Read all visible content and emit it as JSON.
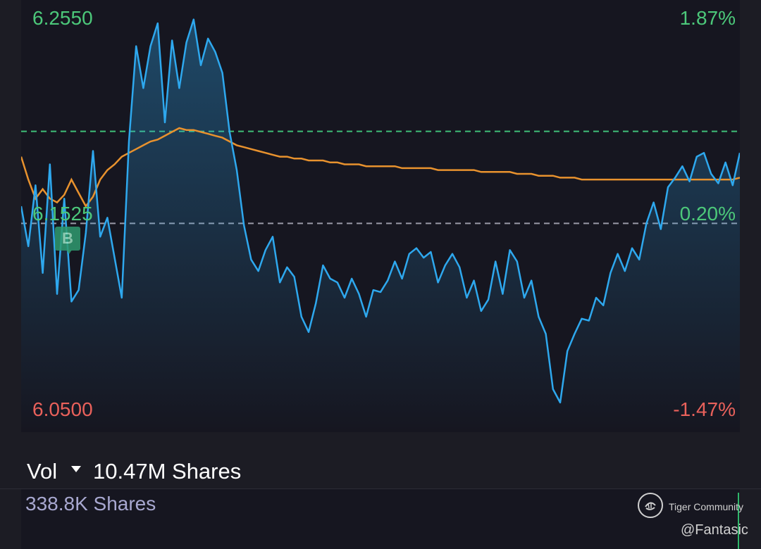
{
  "chart": {
    "price_high": "6.2550",
    "price_mid": "6.1525",
    "price_low": "6.0500",
    "pct_high": "1.87%",
    "pct_mid": "0.20%",
    "pct_low": "-1.47%",
    "buy_marker": "B"
  },
  "volume": {
    "label": "Vol",
    "value": "10.47M Shares",
    "axis_value": "338.8K Shares"
  },
  "watermark": {
    "brand": "Tiger Community",
    "handle": "@Fantasic"
  },
  "colors": {
    "price_line": "#2ea8ee",
    "avg_line": "#e8922e",
    "up": "#4cc87a",
    "down": "#e9615b"
  },
  "chart_data": {
    "type": "line",
    "x": [
      0,
      5,
      10,
      15,
      20,
      25,
      30,
      35,
      40,
      45,
      50,
      55,
      60,
      65,
      70,
      75,
      80,
      85,
      90,
      95,
      100,
      105,
      110,
      115,
      120,
      125,
      130,
      135,
      140,
      145,
      150,
      155,
      160,
      165,
      170,
      175,
      180,
      185,
      190,
      195,
      200,
      205,
      210,
      215,
      220,
      225,
      230,
      235,
      240,
      245,
      250,
      255,
      260,
      265,
      270,
      275,
      280,
      285,
      290,
      295,
      300,
      305,
      310,
      315,
      320,
      325,
      330,
      335,
      340,
      345,
      350,
      355,
      360,
      365,
      370,
      375,
      380,
      385,
      390,
      395,
      400,
      405,
      410,
      415,
      420,
      425,
      430,
      435,
      440,
      445,
      450,
      455,
      460,
      465,
      470,
      475,
      480,
      485,
      490,
      495,
      500
    ],
    "series": [
      {
        "values": [
          6.156,
          6.135,
          6.167,
          6.121,
          6.178,
          6.11,
          6.16,
          6.106,
          6.112,
          6.142,
          6.185,
          6.14,
          6.15,
          6.129,
          6.108,
          6.19,
          6.24,
          6.218,
          6.24,
          6.252,
          6.2,
          6.243,
          6.218,
          6.242,
          6.254,
          6.23,
          6.244,
          6.237,
          6.226,
          6.195,
          6.175,
          6.146,
          6.128,
          6.122,
          6.133,
          6.14,
          6.116,
          6.124,
          6.119,
          6.098,
          6.09,
          6.105,
          6.125,
          6.118,
          6.116,
          6.108,
          6.118,
          6.11,
          6.098,
          6.112,
          6.111,
          6.117,
          6.127,
          6.118,
          6.131,
          6.134,
          6.129,
          6.132,
          6.116,
          6.125,
          6.131,
          6.124,
          6.108,
          6.117,
          6.101,
          6.107,
          6.127,
          6.11,
          6.133,
          6.127,
          6.108,
          6.117,
          6.098,
          6.089,
          6.06,
          6.053,
          6.08,
          6.089,
          6.097,
          6.096,
          6.108,
          6.104,
          6.121,
          6.131,
          6.122,
          6.134,
          6.128,
          6.147,
          6.158,
          6.144,
          6.166,
          6.171,
          6.177,
          6.169,
          6.182,
          6.184,
          6.173,
          6.168,
          6.179,
          6.167,
          6.184
        ]
      },
      {
        "values": [
          6.182,
          6.17,
          6.16,
          6.165,
          6.16,
          6.158,
          6.162,
          6.17,
          6.163,
          6.156,
          6.161,
          6.17,
          6.175,
          6.178,
          6.182,
          6.184,
          6.186,
          6.188,
          6.19,
          6.191,
          6.193,
          6.195,
          6.197,
          6.196,
          6.196,
          6.195,
          6.194,
          6.193,
          6.192,
          6.19,
          6.188,
          6.187,
          6.186,
          6.185,
          6.184,
          6.183,
          6.182,
          6.182,
          6.181,
          6.181,
          6.18,
          6.18,
          6.18,
          6.179,
          6.179,
          6.178,
          6.178,
          6.178,
          6.177,
          6.177,
          6.177,
          6.177,
          6.177,
          6.176,
          6.176,
          6.176,
          6.176,
          6.176,
          6.175,
          6.175,
          6.175,
          6.175,
          6.175,
          6.175,
          6.174,
          6.174,
          6.174,
          6.174,
          6.174,
          6.173,
          6.173,
          6.173,
          6.172,
          6.172,
          6.172,
          6.171,
          6.171,
          6.171,
          6.17,
          6.17,
          6.17,
          6.17,
          6.17,
          6.17,
          6.17,
          6.17,
          6.17,
          6.17,
          6.17,
          6.17,
          6.17,
          6.17,
          6.17,
          6.17,
          6.17,
          6.17,
          6.17,
          6.17,
          6.17,
          6.17,
          6.171
        ]
      }
    ],
    "ylim": [
      6.05,
      6.255
    ],
    "reference_lines": [
      6.1953,
      6.147
    ]
  }
}
